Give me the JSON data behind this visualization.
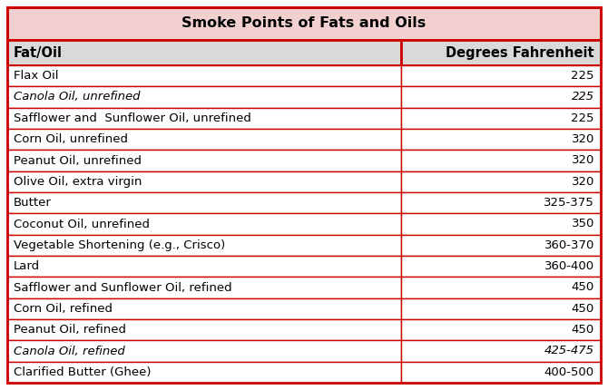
{
  "title": "Smoke Points of Fats and Oils",
  "col_headers": [
    "Fat/Oil",
    "Degrees Fahrenheit"
  ],
  "rows": [
    {
      "name": "Flax Oil",
      "value": "225",
      "italic": false
    },
    {
      "name": "Canola Oil, unrefined",
      "value": "225",
      "italic": true
    },
    {
      "name": "Safflower and  Sunflower Oil, unrefined",
      "value": "225",
      "italic": false
    },
    {
      "name": "Corn Oil, unrefined",
      "value": "320",
      "italic": false
    },
    {
      "name": "Peanut Oil, unrefined",
      "value": "320",
      "italic": false
    },
    {
      "name": "Olive Oil, extra virgin",
      "value": "320",
      "italic": false
    },
    {
      "name": "Butter",
      "value": "325-375",
      "italic": false
    },
    {
      "name": "Coconut Oil, unrefined",
      "value": "350",
      "italic": false
    },
    {
      "name": "Vegetable Shortening (e.g., Crisco)",
      "value": "360-370",
      "italic": false
    },
    {
      "name": "Lard",
      "value": "360-400",
      "italic": false
    },
    {
      "name": "Safflower and Sunflower Oil, refined",
      "value": "450",
      "italic": false
    },
    {
      "name": "Corn Oil, refined",
      "value": "450",
      "italic": false
    },
    {
      "name": "Peanut Oil, refined",
      "value": "450",
      "italic": false
    },
    {
      "name": "Canola Oil, refined",
      "value": "425-475",
      "italic": true
    },
    {
      "name": "Clarified Butter (Ghee)",
      "value": "400-500",
      "italic": false
    }
  ],
  "title_bg": "#f2d0d0",
  "header_bg": "#d9d9d9",
  "row_bg": "#ffffff",
  "outer_border_color": "#cc0000",
  "inner_border_color": "#cc0000",
  "title_font_size": 11.5,
  "header_font_size": 10.5,
  "row_font_size": 9.5,
  "fig_width": 6.7,
  "fig_height": 4.3,
  "dpi": 100
}
